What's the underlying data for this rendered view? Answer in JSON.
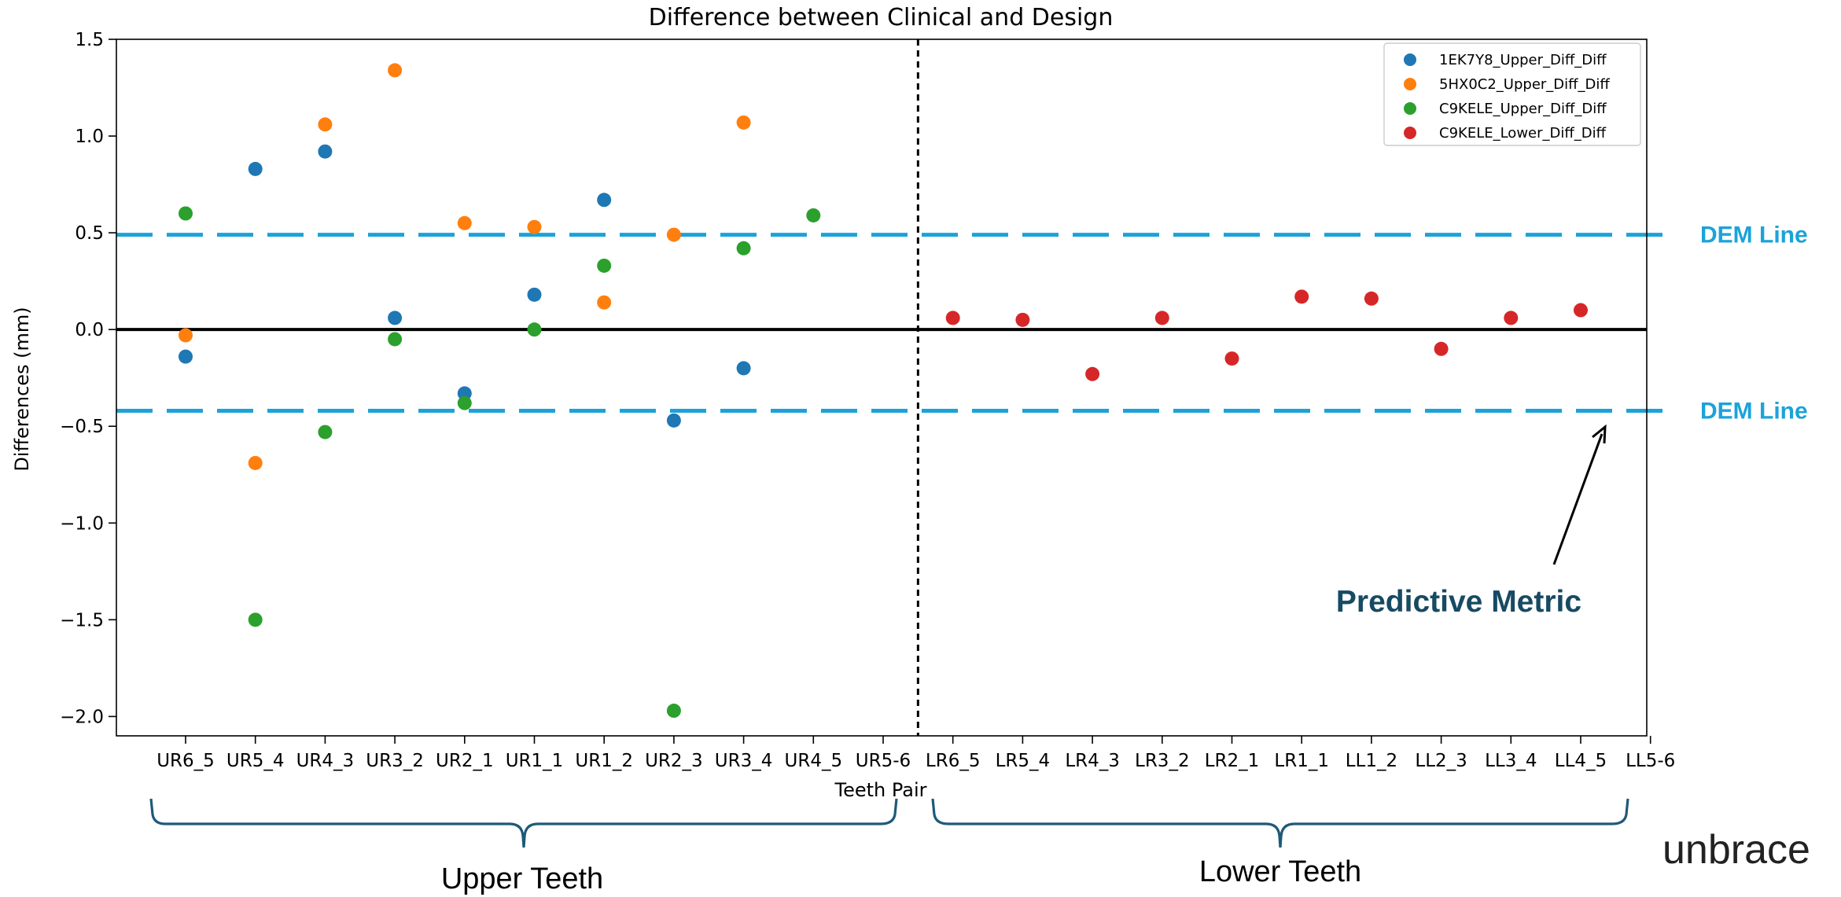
{
  "chart_data": {
    "type": "scatter",
    "title": "Difference between Clinical and Design",
    "xlabel": "Teeth Pair",
    "ylabel": "Differences (mm)",
    "categories": [
      "UR6_5",
      "UR5_4",
      "UR4_3",
      "UR3_2",
      "UR2_1",
      "UR1_1",
      "UR1_2",
      "UR2_3",
      "UR3_4",
      "UR4_5",
      "UR5-6",
      "LR6_5",
      "LR5_4",
      "LR4_3",
      "LR3_2",
      "LR2_1",
      "LR1_1",
      "LL1_2",
      "LL2_3",
      "LL3_4",
      "LL4_5",
      "LL5-6"
    ],
    "ylim": [
      -2.1,
      1.5
    ],
    "yticks": [
      -2.0,
      -1.5,
      -1.0,
      -0.5,
      0.0,
      0.5,
      1.0,
      1.5
    ],
    "ytick_labels": [
      "−2.0",
      "−1.5",
      "−1.0",
      "−0.5",
      "0.0",
      "0.5",
      "1.0",
      "1.5"
    ],
    "grid": false,
    "legend_position": "top-right",
    "series": [
      {
        "name": "1EK7Y8_Upper_Diff_Diff",
        "color": "#1f77b4",
        "values": [
          -0.14,
          0.83,
          0.92,
          0.06,
          -0.33,
          0.18,
          0.67,
          -0.47,
          -0.2,
          null,
          null,
          null,
          null,
          null,
          null,
          null,
          null,
          null,
          null,
          null,
          null,
          null
        ]
      },
      {
        "name": "5HX0C2_Upper_Diff_Diff",
        "color": "#ff7f0e",
        "values": [
          -0.03,
          -0.69,
          1.06,
          1.34,
          0.55,
          0.53,
          0.14,
          0.49,
          1.07,
          null,
          null,
          null,
          null,
          null,
          null,
          null,
          null,
          null,
          null,
          null,
          null,
          null
        ]
      },
      {
        "name": "C9KELE_Upper_Diff_Diff",
        "color": "#2ca02c",
        "values": [
          0.6,
          -1.5,
          -0.53,
          -0.05,
          -0.38,
          0.0,
          0.33,
          -1.97,
          0.42,
          0.59,
          null,
          null,
          null,
          null,
          null,
          null,
          null,
          null,
          null,
          null,
          null,
          null
        ]
      },
      {
        "name": "C9KELE_Lower_Diff_Diff",
        "color": "#d62728",
        "values": [
          null,
          null,
          null,
          null,
          null,
          null,
          null,
          null,
          null,
          null,
          null,
          0.06,
          0.05,
          -0.23,
          0.06,
          -0.15,
          0.17,
          0.16,
          -0.1,
          0.06,
          0.1,
          null
        ]
      }
    ],
    "reference_lines": [
      {
        "y": 0.0,
        "style": "solid",
        "color": "#000000"
      },
      {
        "y": 0.49,
        "style": "dashed",
        "color": "#1ba3d9",
        "label": "DEM Line"
      },
      {
        "y": -0.42,
        "style": "dashed",
        "color": "#1ba3d9",
        "label": "DEM Line"
      }
    ],
    "divider_between": [
      "UR5-6",
      "LR6_5"
    ],
    "annotations": {
      "metric_label": "Predictive Metric",
      "upper_group": "Upper Teeth",
      "lower_group": "Lower Teeth"
    }
  },
  "branding": {
    "logo_text": "unbrace"
  }
}
